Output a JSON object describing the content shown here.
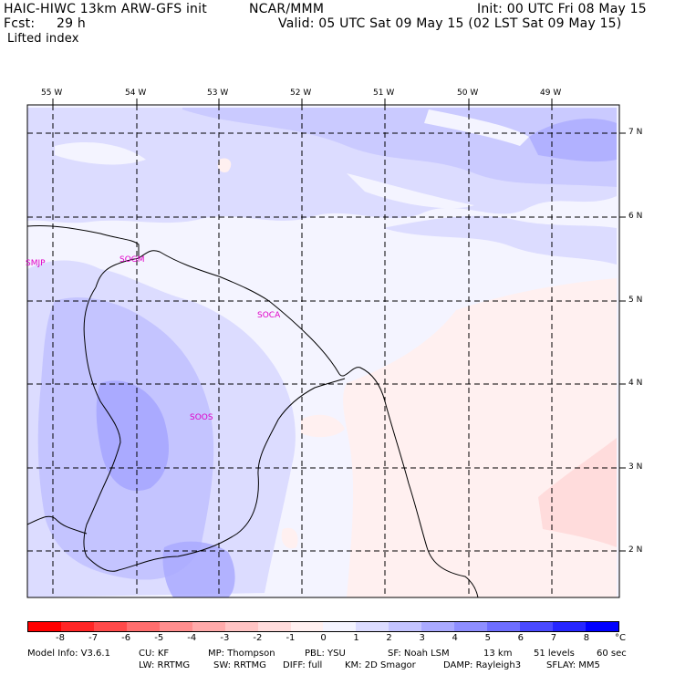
{
  "header": {
    "model": "HAIC-HIWC 13km ARW-GFS init",
    "center": "NCAR/MMM",
    "init": "Init: 00 UTC Fri 08 May 15",
    "fcst_label": "Fcst:",
    "fcst_value": "29 h",
    "valid": "Valid: 05 UTC Sat 09 May 15 (02 LST Sat 09 May 15)",
    "field": "Lifted index"
  },
  "map": {
    "lon_labels": [
      "55 W",
      "54 W",
      "53 W",
      "52 W",
      "51 W",
      "50 W",
      "49 W"
    ],
    "lat_labels": [
      "7 N",
      "6 N",
      "5 N",
      "4 N",
      "3 N",
      "2 N"
    ],
    "stations": [
      "SMJP",
      "SOGM",
      "SOCA",
      "SOOS"
    ]
  },
  "colorbar": {
    "colors": [
      "#ff0000",
      "#ff2626",
      "#ff4a4a",
      "#ff6e6e",
      "#ff8e8e",
      "#ffaaaa",
      "#ffc4c4",
      "#ffdcdc",
      "#fff0f0",
      "#f4f4ff",
      "#dcdcff",
      "#c4c4ff",
      "#aaaaff",
      "#8e8eff",
      "#6e6eff",
      "#4a4aff",
      "#2626ff",
      "#0000ff"
    ],
    "tick_labels": [
      "-8",
      "-7",
      "-6",
      "-5",
      "-4",
      "-3",
      "-2",
      "-1",
      "0",
      "1",
      "2",
      "3",
      "4",
      "5",
      "6",
      "7",
      "8"
    ],
    "unit": "°C"
  },
  "footer": {
    "line1": [
      "Model Info: V3.6.1",
      "CU: KF",
      "MP: Thompson",
      "PBL: YSU",
      "SF: Noah LSM",
      "13 km",
      "51 levels",
      "60 sec"
    ],
    "line2": [
      "LW: RRTMG",
      "SW: RRTMG",
      "DIFF: full",
      "KM: 2D Smagor",
      "DAMP: Rayleigh3",
      "SFLAY: MM5"
    ]
  }
}
